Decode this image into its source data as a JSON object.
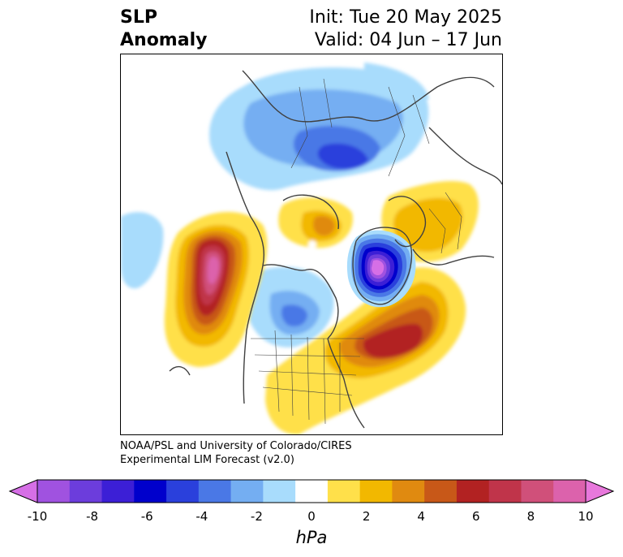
{
  "title": {
    "left_line1": "SLP",
    "left_line2": "Anomaly",
    "right_line1": "Init: Tue 20 May 2025",
    "right_line2": "Valid: 04 Jun – 17 Jun"
  },
  "credit": {
    "line1": "NOAA/PSL and University of Colorado/CIRES",
    "line2": "Experimental LIM Forecast (v2.0)"
  },
  "colorbar": {
    "unit": "hPa",
    "ticks": [
      "-10",
      "-8",
      "-6",
      "-4",
      "-2",
      "0",
      "2",
      "4",
      "6",
      "8",
      "10"
    ],
    "colors": [
      "#d66fe6",
      "#a052e0",
      "#6c3ddc",
      "#3c1fd6",
      "#0000cc",
      "#2a40dc",
      "#4a78e6",
      "#74aef2",
      "#a8dcfc",
      "#ffffff",
      "#ffe04a",
      "#f2b800",
      "#e08a10",
      "#c85818",
      "#b22222",
      "#c0344a",
      "#d0507a",
      "#dc62ac",
      "#e878dc"
    ]
  },
  "map": {
    "projection": "north-polar-stereographic",
    "anomaly_features": [
      {
        "region": "north-central-pacific",
        "sign": "positive",
        "peak_hpa": 9
      },
      {
        "region": "southern-greenland-labrador-sea",
        "sign": "negative",
        "peak_hpa": -10
      },
      {
        "region": "north-atlantic",
        "sign": "positive",
        "peak_hpa": 6
      },
      {
        "region": "central-siberia",
        "sign": "negative",
        "peak_hpa": -5
      },
      {
        "region": "western-europe",
        "sign": "positive",
        "peak_hpa": 2
      },
      {
        "region": "central-north-america",
        "sign": "negative",
        "peak_hpa": -3
      }
    ]
  }
}
